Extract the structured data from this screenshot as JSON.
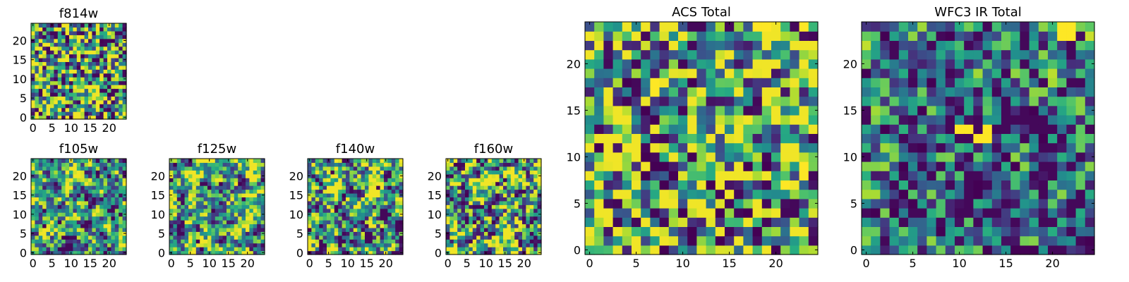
{
  "chart_data": [
    {
      "type": "heatmap",
      "key": "f814w",
      "title": "f814w",
      "grid_size": 25,
      "colormap": "viridis",
      "value_range": [
        0,
        1
      ],
      "seed": 814,
      "bias": 0.15,
      "smooth": 0.05,
      "xlim": [
        -0.5,
        24.5
      ],
      "ylim": [
        -0.5,
        24.5
      ],
      "xticks": [
        0,
        5,
        10,
        15,
        20
      ],
      "yticks": [
        0,
        5,
        10,
        15,
        20
      ]
    },
    {
      "type": "heatmap",
      "key": "f105w",
      "title": "f105w",
      "grid_size": 25,
      "colormap": "viridis",
      "value_range": [
        0,
        1
      ],
      "seed": 105,
      "bias": 0.1,
      "smooth": 0.6,
      "xlim": [
        -0.5,
        24.5
      ],
      "ylim": [
        -0.5,
        24.5
      ],
      "xticks": [
        0,
        5,
        10,
        15,
        20
      ],
      "yticks": [
        0,
        5,
        10,
        15,
        20
      ]
    },
    {
      "type": "heatmap",
      "key": "f125w",
      "title": "f125w",
      "grid_size": 25,
      "colormap": "viridis",
      "value_range": [
        0,
        1
      ],
      "seed": 125,
      "bias": 0.2,
      "smooth": 0.6,
      "xlim": [
        -0.5,
        24.5
      ],
      "ylim": [
        -0.5,
        24.5
      ],
      "xticks": [
        0,
        5,
        10,
        15,
        20
      ],
      "yticks": [
        0,
        5,
        10,
        15,
        20
      ]
    },
    {
      "type": "heatmap",
      "key": "f140w",
      "title": "f140w",
      "grid_size": 25,
      "colormap": "viridis",
      "value_range": [
        0,
        1
      ],
      "seed": 140,
      "bias": 0.15,
      "smooth": 0.55,
      "xlim": [
        -0.5,
        24.5
      ],
      "ylim": [
        -0.5,
        24.5
      ],
      "xticks": [
        0,
        5,
        10,
        15,
        20
      ],
      "yticks": [
        0,
        5,
        10,
        15,
        20
      ]
    },
    {
      "type": "heatmap",
      "key": "f160w",
      "title": "f160w",
      "grid_size": 25,
      "colormap": "viridis",
      "value_range": [
        0,
        1
      ],
      "seed": 160,
      "bias": 0.18,
      "smooth": 0.5,
      "xlim": [
        -0.5,
        24.5
      ],
      "ylim": [
        -0.5,
        24.5
      ],
      "xticks": [
        0,
        5,
        10,
        15,
        20
      ],
      "yticks": [
        0,
        5,
        10,
        15,
        20
      ]
    },
    {
      "type": "heatmap",
      "key": "acs_total",
      "title": "ACS Total",
      "grid_size": 25,
      "colormap": "viridis",
      "value_range": [
        0,
        1
      ],
      "seed": 777,
      "bias": 0.2,
      "smooth": 0.05,
      "xlim": [
        -0.5,
        24.5
      ],
      "ylim": [
        -0.5,
        24.5
      ],
      "xticks": [
        0,
        5,
        10,
        15,
        20
      ],
      "yticks": [
        0,
        5,
        10,
        15,
        20
      ],
      "dark_cells": [
        [
          4,
          18
        ],
        [
          6,
          8
        ],
        [
          8,
          9
        ],
        [
          9,
          8
        ],
        [
          8,
          7
        ],
        [
          11,
          10
        ],
        [
          17,
          9
        ],
        [
          19,
          9
        ],
        [
          17,
          4
        ],
        [
          18,
          2
        ],
        [
          11,
          2
        ],
        [
          20,
          0
        ],
        [
          8,
          0
        ]
      ],
      "bright_cells": [
        [
          18,
          24
        ],
        [
          19,
          24
        ],
        [
          23,
          24
        ],
        [
          7,
          18
        ],
        [
          7,
          17
        ],
        [
          23,
          9
        ],
        [
          23,
          8
        ],
        [
          21,
          7
        ]
      ]
    },
    {
      "type": "heatmap",
      "key": "wfc3_ir_total",
      "title": "WFC3 IR Total",
      "grid_size": 25,
      "colormap": "viridis",
      "value_range": [
        0,
        1
      ],
      "seed": 999,
      "bias": -0.35,
      "smooth": 0.3,
      "xlim": [
        -0.5,
        24.5
      ],
      "ylim": [
        -0.5,
        24.5
      ],
      "xticks": [
        0,
        5,
        10,
        15,
        20
      ],
      "yticks": [
        0,
        5,
        10,
        15,
        20
      ],
      "dark_cells": [
        [
          0,
          19
        ],
        [
          6,
          15
        ],
        [
          2,
          13
        ],
        [
          4,
          9
        ],
        [
          4,
          6
        ],
        [
          5,
          5
        ],
        [
          3,
          4
        ],
        [
          1,
          4
        ],
        [
          13,
          0
        ],
        [
          16,
          0
        ],
        [
          17,
          0
        ],
        [
          18,
          0
        ]
      ],
      "bright_cells": [
        [
          21,
          24
        ],
        [
          22,
          24
        ],
        [
          21,
          23
        ],
        [
          22,
          23
        ],
        [
          10,
          13
        ],
        [
          11,
          13
        ],
        [
          12,
          12
        ],
        [
          13,
          12
        ],
        [
          13,
          13
        ]
      ]
    }
  ]
}
